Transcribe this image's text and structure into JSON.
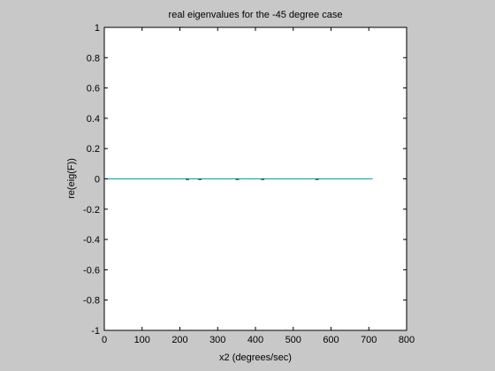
{
  "chart_data": {
    "type": "line",
    "title": "real eigenvalues for the -45 degree case",
    "xlabel": "x2 (degrees/sec)",
    "ylabel": "re(eig(F))",
    "xlim": [
      0,
      800
    ],
    "ylim": [
      -1,
      1
    ],
    "xticks": [
      0,
      100,
      200,
      300,
      400,
      500,
      600,
      700,
      800
    ],
    "yticks": [
      -1,
      -0.8,
      -0.6,
      -0.4,
      -0.2,
      0,
      0.2,
      0.4,
      0.6,
      0.8,
      1
    ],
    "xtick_labels": [
      "0",
      "100",
      "200",
      "300",
      "400",
      "500",
      "600",
      "700",
      "800"
    ],
    "ytick_labels": [
      "-1",
      "-0.8",
      "-0.6",
      "-0.4",
      "-0.2",
      "0",
      "0.2",
      "0.4",
      "0.6",
      "0.8",
      "1"
    ],
    "grid": false,
    "series": [
      {
        "color": "#00a0a0",
        "x": [
          0,
          710
        ],
        "y": [
          0,
          0
        ]
      },
      {
        "color": "#1a5a5a",
        "style": "dash-markers",
        "x": [
          220,
          253,
          352,
          419,
          563
        ],
        "y": [
          -0.003,
          -0.003,
          -0.003,
          -0.003,
          -0.003
        ]
      }
    ]
  },
  "colors": {
    "figure_background": "#c8c8c8",
    "axes_background": "#ffffff",
    "axes_edge": "#000000"
  }
}
